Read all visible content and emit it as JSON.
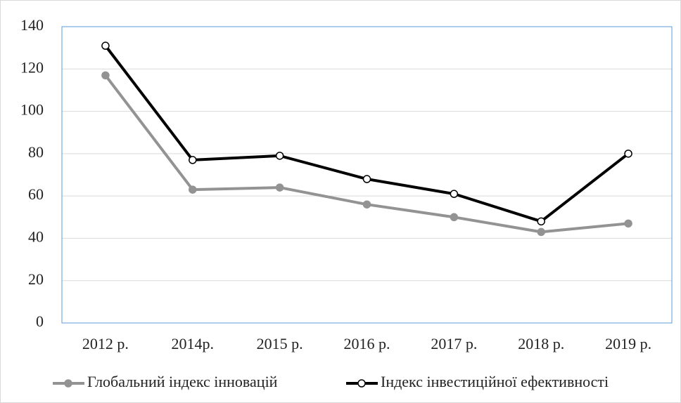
{
  "chart_data": {
    "type": "line",
    "categories": [
      "2012 р.",
      "2014р.",
      "2015 р.",
      "2016 р.",
      "2017 р.",
      "2018 р.",
      "2019 р."
    ],
    "series": [
      {
        "name": "Глобальний індекс інновацій",
        "color": "#939393",
        "marker": "filled",
        "values": [
          117,
          63,
          64,
          56,
          50,
          43,
          47
        ]
      },
      {
        "name": "Індекс інвестиційної ефективності",
        "color": "#000000",
        "marker": "hollow",
        "values": [
          131,
          77,
          79,
          68,
          61,
          48,
          80
        ]
      }
    ],
    "ylim": [
      0,
      140
    ],
    "yticks": [
      0,
      20,
      40,
      60,
      80,
      100,
      120,
      140
    ],
    "grid": true,
    "legend": "bottom"
  }
}
